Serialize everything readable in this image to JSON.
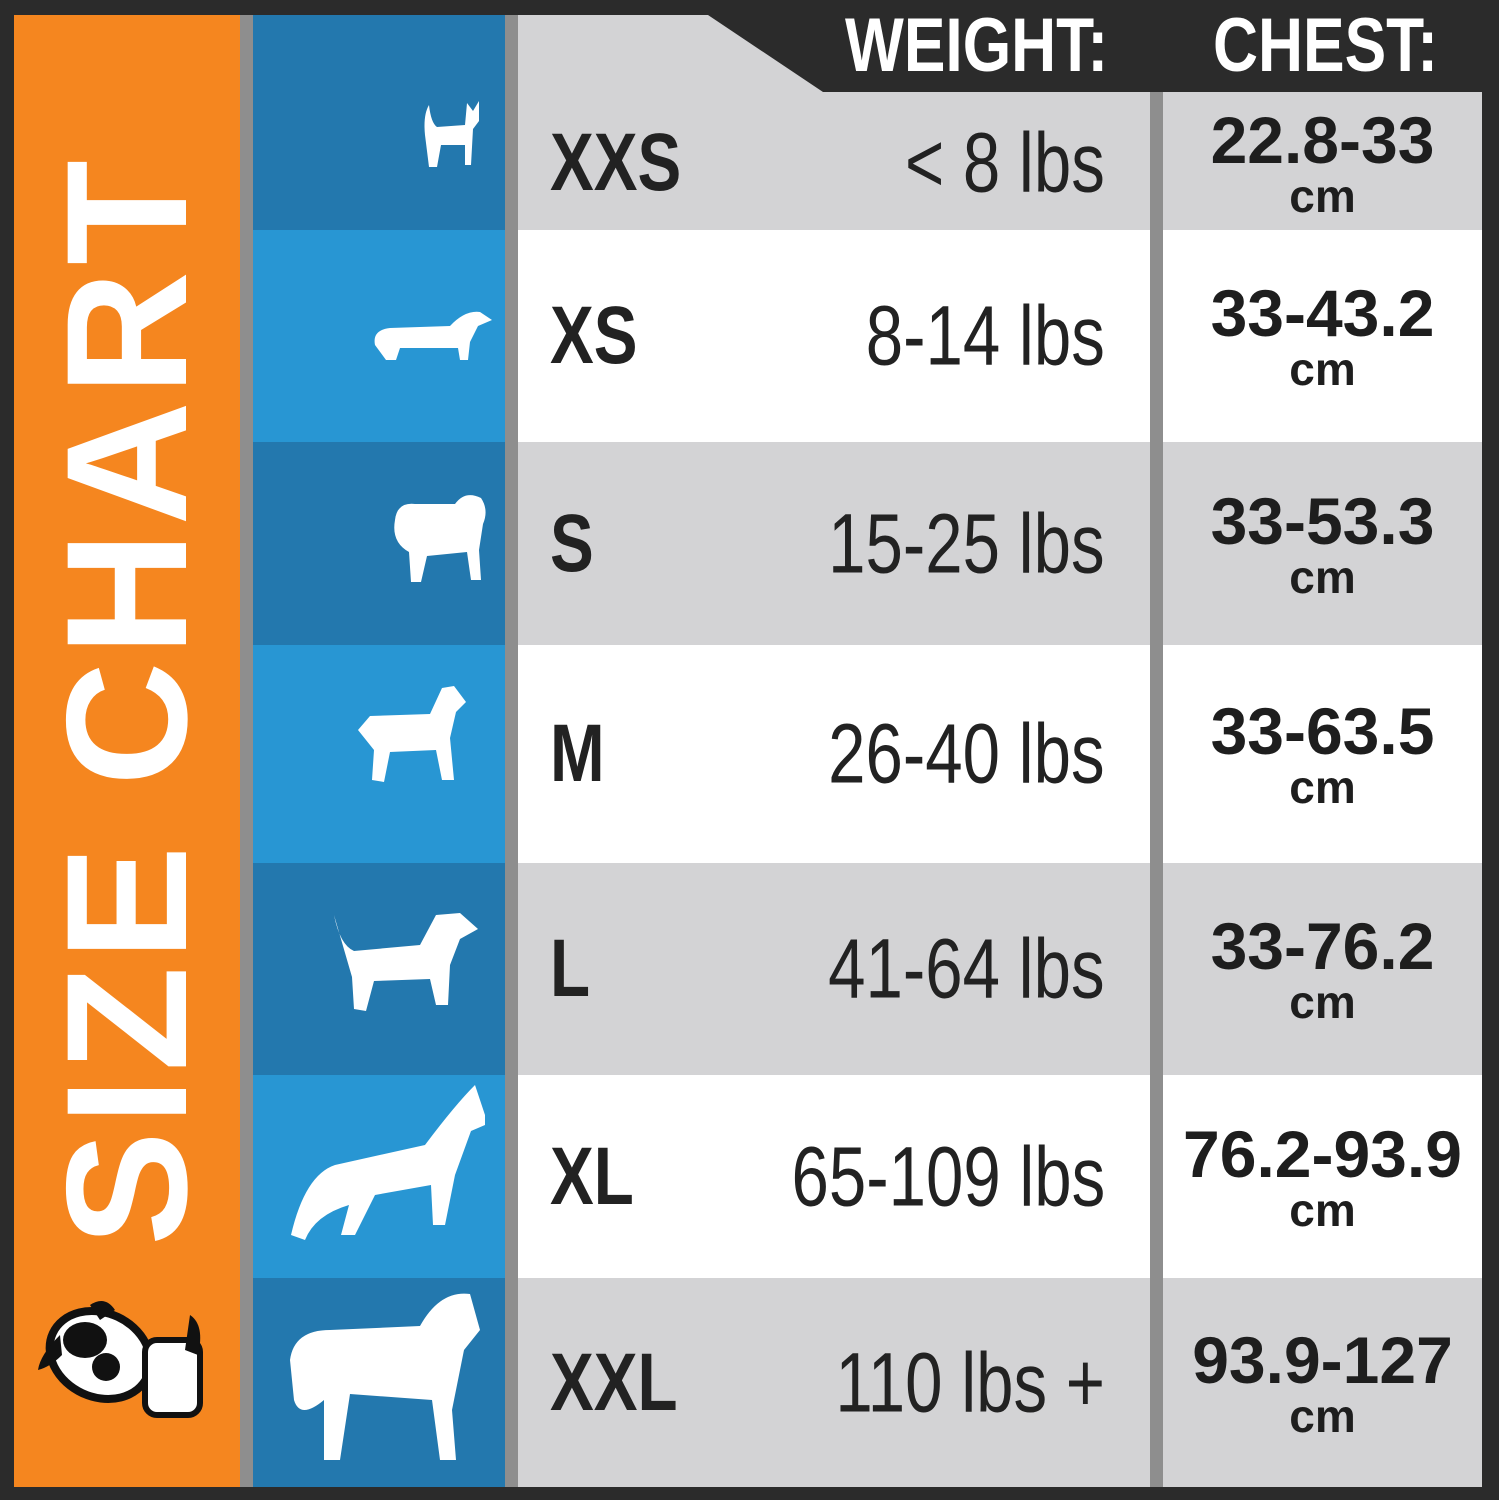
{
  "title": "SIZE CHART",
  "headers": {
    "weight": "WEIGHT:",
    "chest": "CHEST:"
  },
  "colors": {
    "orange": "#f5861f",
    "blue_dark": "#2378ae",
    "blue_light": "#2896d3",
    "row_grey": "#d3d3d5",
    "row_white": "#ffffff",
    "frame": "#2b2b2b"
  },
  "rows": [
    {
      "size": "XXS",
      "weight": "< 8 lbs",
      "chest": "22.8-33",
      "unit": "cm",
      "icon": "chihuahua-icon"
    },
    {
      "size": "XS",
      "weight": "8-14 lbs",
      "chest": "33-43.2",
      "unit": "cm",
      "icon": "dachshund-icon"
    },
    {
      "size": "S",
      "weight": "15-25 lbs",
      "chest": "33-53.3",
      "unit": "cm",
      "icon": "pug-icon"
    },
    {
      "size": "M",
      "weight": "26-40 lbs",
      "chest": "33-63.5",
      "unit": "cm",
      "icon": "schnauzer-icon"
    },
    {
      "size": "L",
      "weight": "41-64 lbs",
      "chest": "33-76.2",
      "unit": "cm",
      "icon": "spaniel-icon"
    },
    {
      "size": "XL",
      "weight": "65-109 lbs",
      "chest": "76.2-93.9",
      "unit": "cm",
      "icon": "shepherd-icon"
    },
    {
      "size": "XXL",
      "weight": "110 lbs +",
      "chest": "93.9-127",
      "unit": "cm",
      "icon": "mastiff-icon"
    }
  ]
}
